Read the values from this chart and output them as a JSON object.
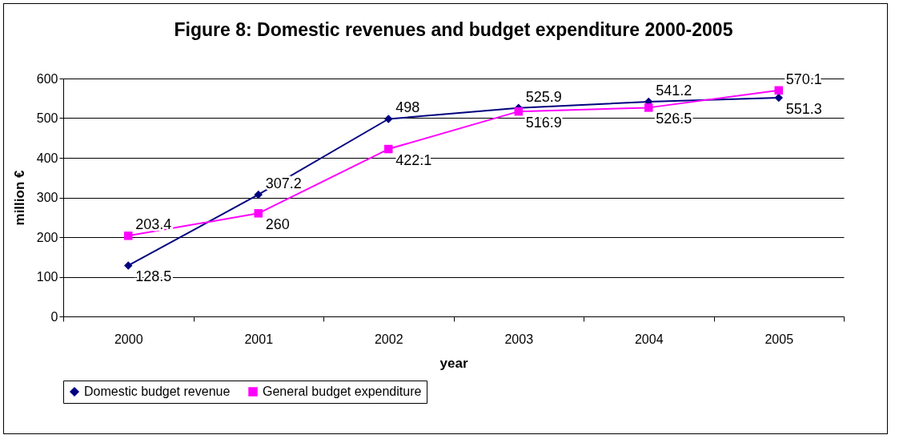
{
  "chart_data": {
    "type": "line",
    "title": "Figure 8: Domestic revenues and budget expenditure 2000-2005",
    "xlabel": "year",
    "ylabel": "million €",
    "categories": [
      "2000",
      "2001",
      "2002",
      "2003",
      "2004",
      "2005"
    ],
    "series": [
      {
        "name": "Domestic budget revenue",
        "color": "#000080",
        "marker": "diamond",
        "values": [
          128.5,
          307.2,
          498,
          525.9,
          541.2,
          551.3
        ]
      },
      {
        "name": "General budget expenditure",
        "color": "#ff00ff",
        "marker": "square",
        "values": [
          203.4,
          260,
          422.1,
          516.9,
          526.5,
          570.1
        ]
      }
    ],
    "ylim": [
      0,
      600
    ],
    "yticks": [
      0,
      100,
      200,
      300,
      400,
      500,
      600
    ],
    "grid": "y",
    "legend": "bottom",
    "data_labels": true
  }
}
